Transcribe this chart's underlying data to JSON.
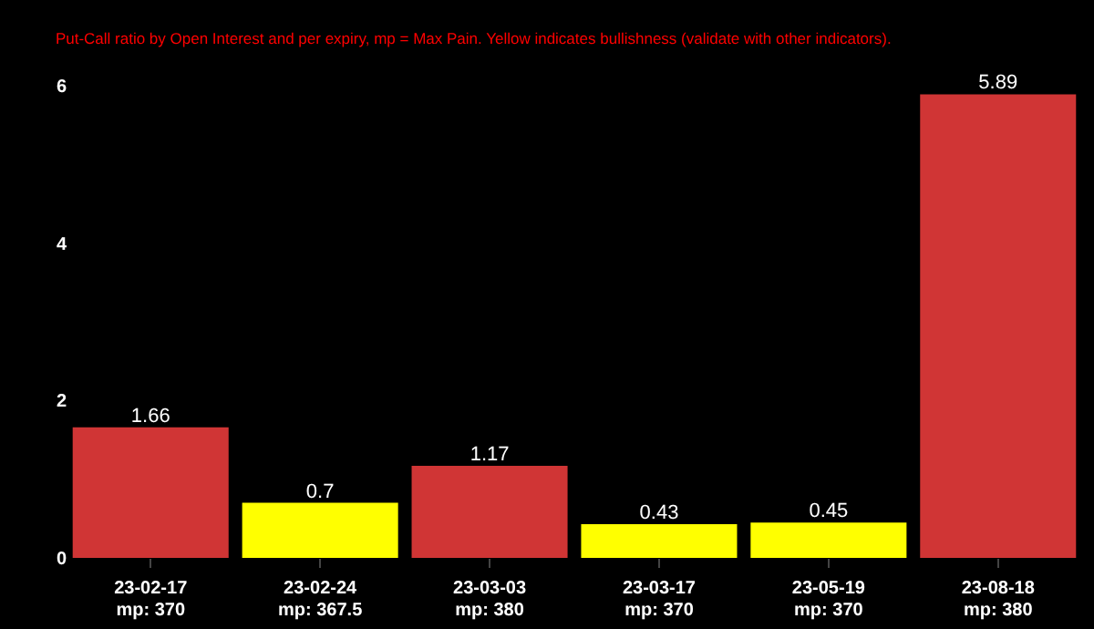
{
  "chart_data": {
    "type": "bar",
    "subtitle": "Put-Call ratio by Open Interest and per expiry, mp = Max Pain. Yellow indicates bullishness (validate with other indicators).",
    "categories": [
      "23-02-17\nmp: 370",
      "23-02-24\nmp: 367.5",
      "23-03-03\nmp: 380",
      "23-03-17\nmp: 370",
      "23-05-19\nmp: 370",
      "23-08-18\nmp: 380"
    ],
    "values": [
      1.66,
      0.7,
      1.17,
      0.43,
      0.45,
      5.89
    ],
    "colors": [
      "#d03535",
      "#ffff00",
      "#d03535",
      "#ffff00",
      "#ffff00",
      "#d03535"
    ],
    "ylim": [
      0,
      6
    ],
    "yticks": [
      0,
      2,
      4,
      6
    ],
    "data_labels": true,
    "grid": false
  }
}
